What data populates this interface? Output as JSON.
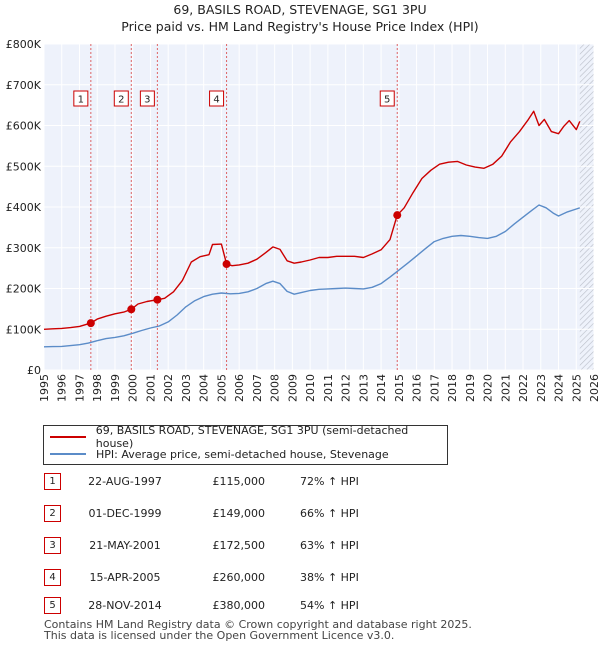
{
  "chart_data": {
    "type": "line",
    "title": "69, BASILS ROAD, STEVENAGE, SG1 3PU",
    "subtitle": "Price paid vs. HM Land Registry's House Price Index (HPI)",
    "xlim": [
      1995,
      2026
    ],
    "ylim": [
      0,
      800000
    ],
    "y_ticks": [
      0,
      100000,
      200000,
      300000,
      400000,
      500000,
      600000,
      700000,
      800000
    ],
    "y_tick_labels": [
      "£0",
      "£100K",
      "£200K",
      "£300K",
      "£400K",
      "£500K",
      "£600K",
      "£700K",
      "£800K"
    ],
    "x_ticks": [
      1995,
      1996,
      1997,
      1998,
      1999,
      2000,
      2001,
      2002,
      2003,
      2004,
      2005,
      2006,
      2007,
      2008,
      2009,
      2010,
      2011,
      2012,
      2013,
      2014,
      2015,
      2016,
      2017,
      2018,
      2019,
      2020,
      2021,
      2022,
      2023,
      2024,
      2025,
      2026
    ],
    "grid": true,
    "future_shaded_from": 2025.2,
    "series": [
      {
        "name": "69, BASILS ROAD, STEVENAGE, SG1 3PU (semi-detached house)",
        "color": "#cc0000",
        "x": [
          1995.0,
          1995.5,
          1996.0,
          1996.5,
          1997.0,
          1997.64,
          1998.0,
          1998.5,
          1999.0,
          1999.5,
          1999.92,
          2000.3,
          2000.8,
          2001.39,
          2001.8,
          2002.3,
          2002.8,
          2003.3,
          2003.8,
          2004.3,
          2004.5,
          2005.0,
          2005.29,
          2005.6,
          2006.0,
          2006.5,
          2007.0,
          2007.5,
          2007.9,
          2008.3,
          2008.7,
          2009.1,
          2009.5,
          2010.0,
          2010.5,
          2011.0,
          2011.5,
          2012.0,
          2012.5,
          2013.0,
          2013.5,
          2014.0,
          2014.5,
          2014.91,
          2015.3,
          2015.8,
          2016.3,
          2016.8,
          2017.3,
          2017.8,
          2018.3,
          2018.8,
          2019.3,
          2019.8,
          2020.3,
          2020.8,
          2021.3,
          2021.8,
          2022.3,
          2022.6,
          2022.9,
          2023.2,
          2023.6,
          2024.0,
          2024.3,
          2024.6,
          2025.0,
          2025.2
        ],
        "values": [
          100000,
          101000,
          102000,
          104000,
          107000,
          115000,
          125000,
          132000,
          138000,
          142000,
          149000,
          162000,
          168000,
          172500,
          176000,
          192000,
          220000,
          265000,
          278000,
          283000,
          308000,
          309000,
          260000,
          256000,
          258000,
          262000,
          272000,
          288000,
          302000,
          296000,
          268000,
          262000,
          265000,
          270000,
          276000,
          276000,
          279000,
          279000,
          279000,
          276000,
          285000,
          295000,
          320000,
          380000,
          398000,
          435000,
          470000,
          490000,
          505000,
          510000,
          512000,
          503000,
          498000,
          495000,
          505000,
          525000,
          560000,
          585000,
          615000,
          635000,
          600000,
          615000,
          585000,
          580000,
          598000,
          612000,
          590000,
          610000
        ]
      },
      {
        "name": "HPI: Average price, semi-detached house, Stevenage",
        "color": "#5b8cc8",
        "x": [
          1995.0,
          1995.5,
          1996.0,
          1996.5,
          1997.0,
          1997.5,
          1998.0,
          1998.5,
          1999.0,
          1999.5,
          2000.0,
          2000.5,
          2001.0,
          2001.5,
          2002.0,
          2002.5,
          2003.0,
          2003.5,
          2004.0,
          2004.5,
          2005.0,
          2005.5,
          2006.0,
          2006.5,
          2007.0,
          2007.5,
          2007.9,
          2008.3,
          2008.7,
          2009.1,
          2009.5,
          2010.0,
          2010.5,
          2011.0,
          2011.5,
          2012.0,
          2012.5,
          2013.0,
          2013.5,
          2014.0,
          2014.5,
          2015.0,
          2015.5,
          2016.0,
          2016.5,
          2017.0,
          2017.5,
          2018.0,
          2018.5,
          2019.0,
          2019.5,
          2020.0,
          2020.5,
          2021.0,
          2021.5,
          2022.0,
          2022.5,
          2022.9,
          2023.3,
          2023.7,
          2024.0,
          2024.5,
          2025.0,
          2025.2
        ],
        "values": [
          57000,
          57500,
          58000,
          60000,
          62000,
          66000,
          72000,
          77000,
          80000,
          84000,
          90000,
          97000,
          103000,
          108000,
          118000,
          135000,
          155000,
          170000,
          180000,
          186000,
          189000,
          187000,
          188000,
          192000,
          200000,
          212000,
          218000,
          212000,
          193000,
          186000,
          190000,
          195000,
          198000,
          199000,
          200000,
          201000,
          200000,
          199000,
          203000,
          212000,
          228000,
          245000,
          262000,
          280000,
          298000,
          315000,
          323000,
          328000,
          330000,
          328000,
          325000,
          323000,
          328000,
          340000,
          358000,
          375000,
          392000,
          405000,
          398000,
          385000,
          378000,
          388000,
          395000,
          398000
        ]
      }
    ],
    "sales": [
      {
        "id": "1",
        "year": 1997.64,
        "price": 115000,
        "date": "22-AUG-1997",
        "price_label": "£115,000",
        "hpi": "72% ↑ HPI"
      },
      {
        "id": "2",
        "year": 1999.92,
        "price": 149000,
        "date": "01-DEC-1999",
        "price_label": "£149,000",
        "hpi": "66% ↑ HPI"
      },
      {
        "id": "3",
        "year": 2001.39,
        "price": 172500,
        "date": "21-MAY-2001",
        "price_label": "£172,500",
        "hpi": "63% ↑ HPI"
      },
      {
        "id": "4",
        "year": 2005.29,
        "price": 260000,
        "date": "15-APR-2005",
        "price_label": "£260,000",
        "hpi": "38% ↑ HPI"
      },
      {
        "id": "5",
        "year": 2014.91,
        "price": 380000,
        "date": "28-NOV-2014",
        "price_label": "£380,000",
        "hpi": "54% ↑ HPI"
      }
    ]
  },
  "legend": {
    "property_label": "69, BASILS ROAD, STEVENAGE, SG1 3PU (semi-detached house)",
    "hpi_label": "HPI: Average price, semi-detached house, Stevenage",
    "property_color": "#cc0000",
    "hpi_color": "#5b8cc8"
  },
  "footer": {
    "line1": "Contains HM Land Registry data © Crown copyright and database right 2025.",
    "line2": "This data is licensed under the Open Government Licence v3.0."
  }
}
